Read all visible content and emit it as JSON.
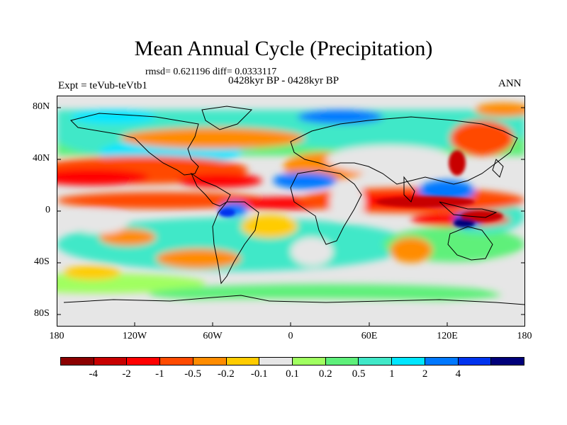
{
  "header": {
    "title": "Mean Annual Cycle (Precipitation)",
    "stats": "rmsd= 0.621196 diff= 0.0333117",
    "period": "0428kyr BP - 0428kyr BP",
    "experiment": "Expt = teVub-teVtb1",
    "season": "ANN"
  },
  "axes": {
    "y_ticks": [
      "80N",
      "40N",
      "0",
      "40S",
      "80S"
    ],
    "x_ticks": [
      "180",
      "120W",
      "60W",
      "0",
      "60E",
      "120E",
      "180"
    ]
  },
  "colorbar": {
    "colors": [
      "#8b0000",
      "#c80000",
      "#ff0000",
      "#ff4a00",
      "#ff8c00",
      "#ffcc00",
      "#e6e6e6",
      "#a0ff60",
      "#5ef07a",
      "#40e8c8",
      "#00e6ff",
      "#0078ff",
      "#0033ee",
      "#00007a"
    ],
    "labels": [
      "-4",
      "-2",
      "-1",
      "-0.5",
      "-0.2",
      "-0.1",
      "0.1",
      "0.2",
      "0.5",
      "1",
      "2",
      "4"
    ]
  }
}
